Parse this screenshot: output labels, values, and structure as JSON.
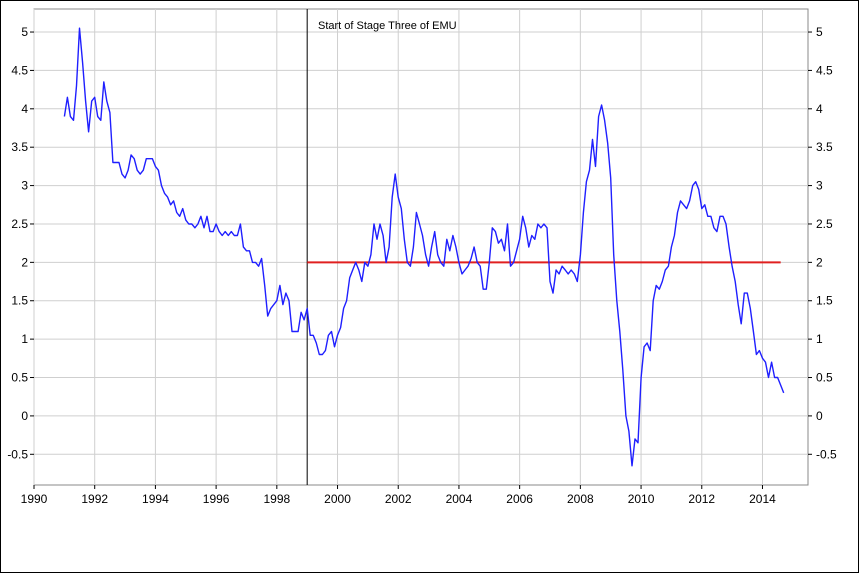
{
  "chart_data": {
    "type": "line",
    "title": "",
    "xlabel": "",
    "ylabel": "",
    "xlim": [
      1990,
      2015.5
    ],
    "ylim": [
      -0.9,
      5.3
    ],
    "x_ticks": [
      1990,
      1992,
      1994,
      1996,
      1998,
      2000,
      2002,
      2004,
      2006,
      2008,
      2010,
      2012,
      2014
    ],
    "y_ticks": [
      -0.5,
      0,
      0.5,
      1,
      1.5,
      2,
      2.5,
      3,
      3.5,
      4,
      4.5,
      5
    ],
    "x_tick_labels": [
      "1990",
      "1992",
      "1994",
      "1996",
      "1998",
      "2000",
      "2002",
      "2004",
      "2006",
      "2008",
      "2010",
      "2012",
      "2014"
    ],
    "y_tick_labels": [
      "-0.5",
      "0",
      "0.5",
      "1",
      "1.5",
      "2",
      "2.5",
      "3",
      "3.5",
      "4",
      "4.5",
      "5"
    ],
    "grid": true,
    "y_axis_right": true,
    "colors": {
      "series": "#1f1fff",
      "target": "#e02020",
      "vline": "#000000",
      "grid": "#cfcfcf"
    },
    "vline": {
      "x": 1999.0,
      "label": "Start of Stage Three of EMU"
    },
    "hline": {
      "y": 2.0,
      "x_start": 1999.0,
      "x_end": 2014.6
    },
    "series": [
      {
        "values": [
          [
            1991.0,
            3.9
          ],
          [
            1991.1,
            4.15
          ],
          [
            1991.2,
            3.9
          ],
          [
            1991.3,
            3.85
          ],
          [
            1991.4,
            4.3
          ],
          [
            1991.5,
            5.05
          ],
          [
            1991.6,
            4.6
          ],
          [
            1991.7,
            4.1
          ],
          [
            1991.8,
            3.7
          ],
          [
            1991.9,
            4.1
          ],
          [
            1992.0,
            4.15
          ],
          [
            1992.1,
            3.9
          ],
          [
            1992.2,
            3.85
          ],
          [
            1992.3,
            4.35
          ],
          [
            1992.4,
            4.1
          ],
          [
            1992.5,
            3.95
          ],
          [
            1992.6,
            3.3
          ],
          [
            1992.7,
            3.3
          ],
          [
            1992.8,
            3.3
          ],
          [
            1992.9,
            3.15
          ],
          [
            1993.0,
            3.1
          ],
          [
            1993.1,
            3.2
          ],
          [
            1993.2,
            3.4
          ],
          [
            1993.3,
            3.35
          ],
          [
            1993.4,
            3.2
          ],
          [
            1993.5,
            3.15
          ],
          [
            1993.6,
            3.2
          ],
          [
            1993.7,
            3.35
          ],
          [
            1993.8,
            3.35
          ],
          [
            1993.9,
            3.35
          ],
          [
            1994.0,
            3.25
          ],
          [
            1994.1,
            3.2
          ],
          [
            1994.2,
            3.0
          ],
          [
            1994.3,
            2.9
          ],
          [
            1994.4,
            2.85
          ],
          [
            1994.5,
            2.75
          ],
          [
            1994.6,
            2.8
          ],
          [
            1994.7,
            2.65
          ],
          [
            1994.8,
            2.6
          ],
          [
            1994.9,
            2.7
          ],
          [
            1995.0,
            2.55
          ],
          [
            1995.1,
            2.5
          ],
          [
            1995.2,
            2.5
          ],
          [
            1995.3,
            2.45
          ],
          [
            1995.4,
            2.5
          ],
          [
            1995.5,
            2.6
          ],
          [
            1995.6,
            2.45
          ],
          [
            1995.7,
            2.6
          ],
          [
            1995.8,
            2.4
          ],
          [
            1995.9,
            2.4
          ],
          [
            1996.0,
            2.5
          ],
          [
            1996.1,
            2.4
          ],
          [
            1996.2,
            2.35
          ],
          [
            1996.3,
            2.4
          ],
          [
            1996.4,
            2.35
          ],
          [
            1996.5,
            2.4
          ],
          [
            1996.6,
            2.35
          ],
          [
            1996.7,
            2.35
          ],
          [
            1996.8,
            2.5
          ],
          [
            1996.9,
            2.2
          ],
          [
            1997.0,
            2.15
          ],
          [
            1997.1,
            2.15
          ],
          [
            1997.2,
            2.0
          ],
          [
            1997.3,
            2.0
          ],
          [
            1997.4,
            1.95
          ],
          [
            1997.5,
            2.05
          ],
          [
            1997.6,
            1.7
          ],
          [
            1997.7,
            1.3
          ],
          [
            1997.8,
            1.4
          ],
          [
            1997.9,
            1.45
          ],
          [
            1998.0,
            1.5
          ],
          [
            1998.1,
            1.7
          ],
          [
            1998.2,
            1.45
          ],
          [
            1998.3,
            1.6
          ],
          [
            1998.4,
            1.5
          ],
          [
            1998.5,
            1.1
          ],
          [
            1998.6,
            1.1
          ],
          [
            1998.7,
            1.1
          ],
          [
            1998.8,
            1.35
          ],
          [
            1998.9,
            1.25
          ],
          [
            1999.0,
            1.4
          ],
          [
            1999.1,
            1.05
          ],
          [
            1999.2,
            1.05
          ],
          [
            1999.3,
            0.95
          ],
          [
            1999.4,
            0.8
          ],
          [
            1999.5,
            0.8
          ],
          [
            1999.6,
            0.85
          ],
          [
            1999.7,
            1.05
          ],
          [
            1999.8,
            1.1
          ],
          [
            1999.9,
            0.9
          ],
          [
            2000.0,
            1.05
          ],
          [
            2000.1,
            1.15
          ],
          [
            2000.2,
            1.4
          ],
          [
            2000.3,
            1.5
          ],
          [
            2000.4,
            1.8
          ],
          [
            2000.5,
            1.9
          ],
          [
            2000.6,
            2.0
          ],
          [
            2000.7,
            1.9
          ],
          [
            2000.8,
            1.75
          ],
          [
            2000.9,
            2.0
          ],
          [
            2001.0,
            1.95
          ],
          [
            2001.1,
            2.1
          ],
          [
            2001.2,
            2.5
          ],
          [
            2001.3,
            2.3
          ],
          [
            2001.4,
            2.5
          ],
          [
            2001.5,
            2.35
          ],
          [
            2001.6,
            2.0
          ],
          [
            2001.7,
            2.2
          ],
          [
            2001.8,
            2.85
          ],
          [
            2001.9,
            3.15
          ],
          [
            2002.0,
            2.85
          ],
          [
            2002.1,
            2.7
          ],
          [
            2002.2,
            2.3
          ],
          [
            2002.3,
            2.0
          ],
          [
            2002.4,
            1.95
          ],
          [
            2002.5,
            2.2
          ],
          [
            2002.6,
            2.65
          ],
          [
            2002.7,
            2.5
          ],
          [
            2002.8,
            2.35
          ],
          [
            2002.9,
            2.1
          ],
          [
            2003.0,
            1.95
          ],
          [
            2003.1,
            2.2
          ],
          [
            2003.2,
            2.4
          ],
          [
            2003.3,
            2.1
          ],
          [
            2003.4,
            2.0
          ],
          [
            2003.5,
            1.95
          ],
          [
            2003.6,
            2.3
          ],
          [
            2003.7,
            2.15
          ],
          [
            2003.8,
            2.35
          ],
          [
            2003.9,
            2.2
          ],
          [
            2004.0,
            2.0
          ],
          [
            2004.1,
            1.85
          ],
          [
            2004.2,
            1.9
          ],
          [
            2004.3,
            1.95
          ],
          [
            2004.4,
            2.05
          ],
          [
            2004.5,
            2.2
          ],
          [
            2004.6,
            2.0
          ],
          [
            2004.7,
            1.95
          ],
          [
            2004.8,
            1.65
          ],
          [
            2004.9,
            1.65
          ],
          [
            2005.0,
            2.0
          ],
          [
            2005.1,
            2.45
          ],
          [
            2005.2,
            2.4
          ],
          [
            2005.3,
            2.25
          ],
          [
            2005.4,
            2.3
          ],
          [
            2005.5,
            2.15
          ],
          [
            2005.6,
            2.5
          ],
          [
            2005.7,
            1.95
          ],
          [
            2005.8,
            2.0
          ],
          [
            2005.9,
            2.15
          ],
          [
            2006.0,
            2.3
          ],
          [
            2006.1,
            2.6
          ],
          [
            2006.2,
            2.45
          ],
          [
            2006.3,
            2.2
          ],
          [
            2006.4,
            2.35
          ],
          [
            2006.5,
            2.3
          ],
          [
            2006.6,
            2.5
          ],
          [
            2006.7,
            2.45
          ],
          [
            2006.8,
            2.5
          ],
          [
            2006.9,
            2.45
          ],
          [
            2007.0,
            1.75
          ],
          [
            2007.1,
            1.6
          ],
          [
            2007.2,
            1.9
          ],
          [
            2007.3,
            1.85
          ],
          [
            2007.4,
            1.95
          ],
          [
            2007.5,
            1.9
          ],
          [
            2007.6,
            1.85
          ],
          [
            2007.7,
            1.9
          ],
          [
            2007.8,
            1.85
          ],
          [
            2007.9,
            1.75
          ],
          [
            2008.0,
            2.1
          ],
          [
            2008.1,
            2.65
          ],
          [
            2008.2,
            3.05
          ],
          [
            2008.3,
            3.2
          ],
          [
            2008.4,
            3.6
          ],
          [
            2008.5,
            3.25
          ],
          [
            2008.6,
            3.9
          ],
          [
            2008.7,
            4.05
          ],
          [
            2008.8,
            3.85
          ],
          [
            2008.9,
            3.55
          ],
          [
            2009.0,
            3.1
          ],
          [
            2009.1,
            2.1
          ],
          [
            2009.2,
            1.5
          ],
          [
            2009.3,
            1.1
          ],
          [
            2009.4,
            0.6
          ],
          [
            2009.5,
            0.0
          ],
          [
            2009.6,
            -0.2
          ],
          [
            2009.7,
            -0.65
          ],
          [
            2009.8,
            -0.3
          ],
          [
            2009.9,
            -0.35
          ],
          [
            2010.0,
            0.5
          ],
          [
            2010.1,
            0.9
          ],
          [
            2010.2,
            0.95
          ],
          [
            2010.3,
            0.85
          ],
          [
            2010.4,
            1.5
          ],
          [
            2010.5,
            1.7
          ],
          [
            2010.6,
            1.65
          ],
          [
            2010.7,
            1.75
          ],
          [
            2010.8,
            1.9
          ],
          [
            2010.9,
            1.95
          ],
          [
            2011.0,
            2.2
          ],
          [
            2011.1,
            2.35
          ],
          [
            2011.2,
            2.65
          ],
          [
            2011.3,
            2.8
          ],
          [
            2011.4,
            2.75
          ],
          [
            2011.5,
            2.7
          ],
          [
            2011.6,
            2.8
          ],
          [
            2011.7,
            3.0
          ],
          [
            2011.8,
            3.05
          ],
          [
            2011.9,
            2.95
          ],
          [
            2012.0,
            2.7
          ],
          [
            2012.1,
            2.75
          ],
          [
            2012.2,
            2.6
          ],
          [
            2012.3,
            2.6
          ],
          [
            2012.4,
            2.45
          ],
          [
            2012.5,
            2.4
          ],
          [
            2012.6,
            2.6
          ],
          [
            2012.7,
            2.6
          ],
          [
            2012.8,
            2.5
          ],
          [
            2012.9,
            2.2
          ],
          [
            2013.0,
            1.95
          ],
          [
            2013.1,
            1.75
          ],
          [
            2013.2,
            1.45
          ],
          [
            2013.3,
            1.2
          ],
          [
            2013.4,
            1.6
          ],
          [
            2013.5,
            1.6
          ],
          [
            2013.6,
            1.4
          ],
          [
            2013.7,
            1.1
          ],
          [
            2013.8,
            0.8
          ],
          [
            2013.9,
            0.85
          ],
          [
            2014.0,
            0.75
          ],
          [
            2014.1,
            0.7
          ],
          [
            2014.2,
            0.5
          ],
          [
            2014.3,
            0.7
          ],
          [
            2014.4,
            0.5
          ],
          [
            2014.5,
            0.5
          ],
          [
            2014.6,
            0.4
          ],
          [
            2014.7,
            0.3
          ]
        ]
      }
    ]
  }
}
